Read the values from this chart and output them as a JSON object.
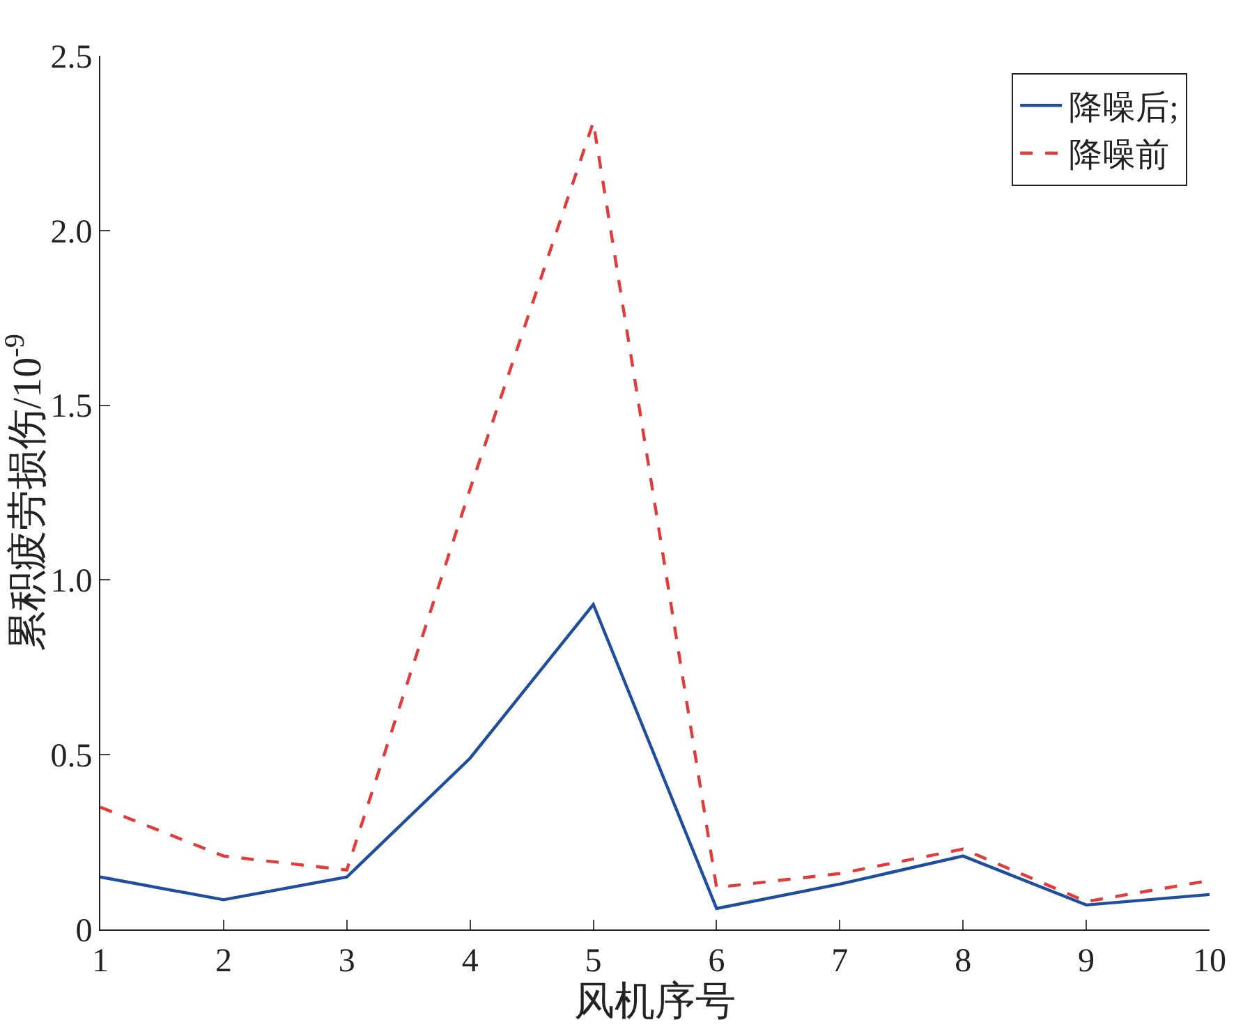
{
  "chart_data": {
    "type": "line",
    "xlabel": "风机序号",
    "ylabel": "累积疲劳损伤/10$^{-9}$",
    "x": [
      1,
      2,
      3,
      4,
      5,
      6,
      7,
      8,
      9,
      10
    ],
    "series": [
      {
        "name": "降噪后;",
        "color": "#1f4e9c",
        "line_style": "solid",
        "values": [
          0.15,
          0.085,
          0.15,
          0.49,
          0.93,
          0.06,
          0.13,
          0.21,
          0.07,
          0.1
        ]
      },
      {
        "name": "降噪前",
        "color": "#e03c3c",
        "line_style": "dashed",
        "values": [
          0.35,
          0.21,
          0.17,
          1.26,
          2.31,
          0.12,
          0.16,
          0.23,
          0.08,
          0.14
        ]
      }
    ],
    "xlim": [
      1,
      10
    ],
    "xticks": [
      1,
      2,
      3,
      4,
      5,
      6,
      7,
      8,
      9,
      10
    ],
    "ylim": [
      0,
      2.5
    ],
    "yticks": [
      {
        "value": 0,
        "label": "0"
      },
      {
        "value": 0.5,
        "label": "0.5"
      },
      {
        "value": 1,
        "label": "1.0"
      },
      {
        "value": 1.5,
        "label": "1.5"
      },
      {
        "value": 2,
        "label": "2.0"
      },
      {
        "value": 2.5,
        "label": "2.5"
      }
    ],
    "legend": "top right",
    "marker": "none"
  }
}
